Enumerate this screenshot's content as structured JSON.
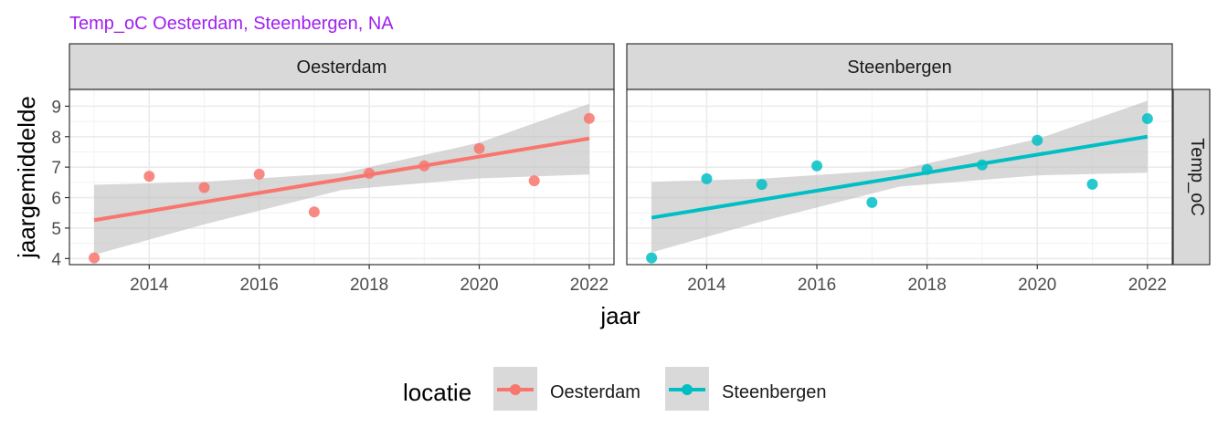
{
  "chart_data": {
    "type": "scatter",
    "title": "Temp_oC Oesterdam, Steenbergen, NA",
    "xlabel": "jaar",
    "ylabel": "jaargemiddelde",
    "strip_right": "Temp_oC",
    "xlim": [
      2012.55,
      2022.45
    ],
    "ylim": [
      3.8,
      9.55
    ],
    "x_ticks": [
      2014,
      2016,
      2018,
      2020,
      2022
    ],
    "y_ticks": [
      4,
      5,
      6,
      7,
      8,
      9
    ],
    "legend": {
      "title": "locatie",
      "position": "bottom"
    },
    "panels": [
      {
        "name": "Oesterdam",
        "color": "#F8766D",
        "x": [
          2013,
          2014,
          2015,
          2016,
          2017,
          2018,
          2019,
          2020,
          2021,
          2022
        ],
        "y": [
          4.02,
          6.7,
          6.33,
          6.77,
          5.53,
          6.8,
          7.04,
          7.61,
          6.55,
          8.6
        ],
        "trend": {
          "x": [
            2013,
            2022
          ],
          "y": [
            5.26,
            7.94
          ]
        },
        "band": {
          "x": [
            2013,
            2015,
            2017.5,
            2020,
            2022
          ],
          "lower": [
            4.12,
            5.12,
            6.25,
            6.63,
            6.76
          ],
          "upper": [
            6.42,
            6.52,
            6.8,
            7.8,
            9.08
          ]
        }
      },
      {
        "name": "Steenbergen",
        "color": "#00BFC4",
        "x": [
          2013,
          2014,
          2015,
          2016,
          2017,
          2018,
          2019,
          2020,
          2021,
          2022
        ],
        "y": [
          4.02,
          6.62,
          6.43,
          7.04,
          5.84,
          6.92,
          7.07,
          7.88,
          6.44,
          8.59
        ],
        "trend": {
          "x": [
            2013,
            2022
          ],
          "y": [
            5.34,
            8.0
          ]
        },
        "band": {
          "x": [
            2013,
            2015,
            2017.5,
            2020,
            2022
          ],
          "lower": [
            4.2,
            5.22,
            6.36,
            6.73,
            6.82
          ],
          "upper": [
            6.52,
            6.62,
            6.92,
            7.92,
            9.18
          ]
        }
      }
    ]
  }
}
